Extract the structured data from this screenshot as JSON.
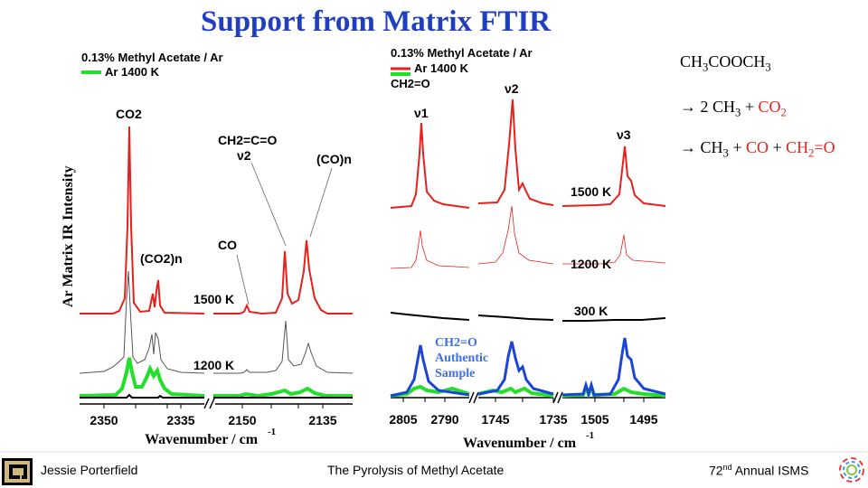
{
  "slide": {
    "title": "Support from Matrix FTIR"
  },
  "reactions": {
    "reactant": "CH3COOCH3",
    "path1": {
      "arrow": "→",
      "coef": "2",
      "product1": "CH3",
      "plus": "+",
      "product2": "CO2"
    },
    "path2": {
      "arrow": "→",
      "product1": "CH3",
      "plus1": "+",
      "product2": "CO",
      "plus2": "+",
      "product3": "CH2=O"
    }
  },
  "left_panel": {
    "legend_line1": "0.13% Methyl Acetate / Ar",
    "legend_line2": "Ar 1400 K",
    "ylabel": "Ar Matrix IR Intensity",
    "xlabel": "Wavenumber / cm",
    "xlabel_sup": "-1",
    "ticks": [
      "2350",
      "2335",
      "2150",
      "2135"
    ],
    "labels": {
      "co2": "CO2",
      "co2n": "(CO2)n",
      "ketene": "CH2=C=O",
      "ketene_mode": "ν2",
      "con": "(CO)n",
      "co": "CO",
      "t1500": "1500 K",
      "t1200": "1200 K"
    }
  },
  "right_panel": {
    "legend_line1": "0.13% Methyl Acetate / Ar",
    "legend_line2": "Ar 1400 K",
    "legend_line3": "CH2=O",
    "xlabel": "Wavenumber / cm",
    "xlabel_sup": "-1",
    "ticks": [
      "2805",
      "2790",
      "1745",
      "1735",
      "1505",
      "1495"
    ],
    "labels": {
      "nu1": "ν1",
      "nu2": "ν2",
      "nu3": "ν3",
      "t1500": "1500 K",
      "t1200": "1200 K",
      "t300": "300 K",
      "authentic1": "CH2=O",
      "authentic2": "Authentic",
      "authentic3": "Sample"
    }
  },
  "colors": {
    "title": "#1f3fbf",
    "red_trace": "#e8201c",
    "green_trace": "#22e02a",
    "blue_trace": "#1b45d6",
    "authentic_label": "#3f6fe0"
  },
  "footer": {
    "author": "Jessie Porterfield",
    "talk_title": "The Pyrolysis of Methyl Acetate",
    "meeting_sup": "nd",
    "meeting_num": "72",
    "meeting_rest": " Annual ISMS",
    "logo_left": "cu-logo-icon",
    "logo_right": "isms-logo-icon"
  }
}
